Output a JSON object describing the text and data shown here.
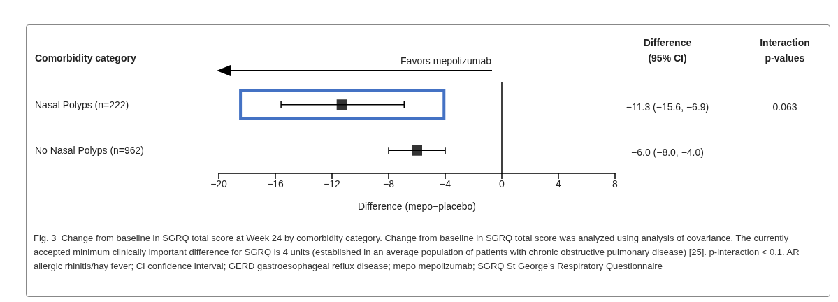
{
  "chart_data": {
    "type": "scatter",
    "orientation": "horizontal",
    "ylabel": "Comorbidity category",
    "categories": [
      "Nasal Polyps (n=222)",
      "No Nasal Polyps (n=962)"
    ],
    "values": [
      -11.3,
      -6.0
    ],
    "errors": [
      [
        -15.6,
        -6.9
      ],
      [
        -8.0,
        -4.0
      ]
    ],
    "color": "#000000",
    "marker": "square",
    "xlim": [
      -20,
      8
    ],
    "xticks": [
      -20,
      -16,
      -12,
      -8,
      -4,
      0,
      4,
      8
    ],
    "xlabel": "Difference (mepo−placebo)",
    "ref_lines": [
      {
        "axis": "x",
        "value": 0,
        "label": null,
        "color": "#000000"
      }
    ],
    "annotations": [
      "Favors mepolizumab",
      "Difference\n(95% CI)",
      "Interaction\np-values",
      "0.063",
      "−11.3 (−15.6, −6.9)",
      "−6.0 (−8.0, −4.0)",
      "Fig. 3  Change from baseline in SGRQ total score at Week 24 by comorbidity category. Change from baseline in SGRQ total score was analyzed using analysis of covariance. The currently accepted minimum clinically important difference for SGRQ is 4 units (established in an average population of patients with chronic obstructive pulmonary disease) [25]. p-interaction < 0.1. AR allergic rhinitis/hay fever; CI confidence interval; GERD gastroesophageal reflux disease; mepo mepolizumab; SGRQ St George's Respiratory Questionnaire"
    ]
  }
}
